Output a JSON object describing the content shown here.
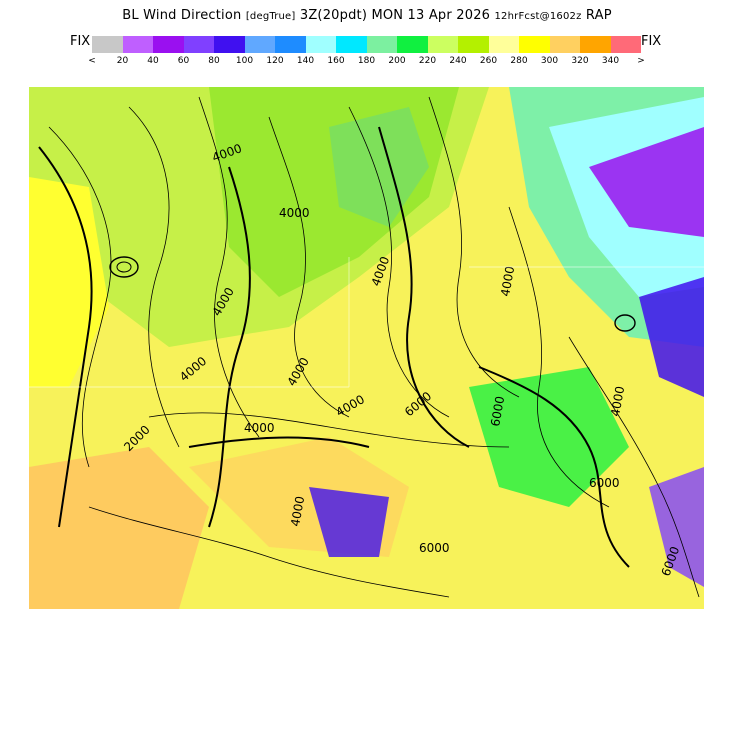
{
  "header": {
    "variable": "BL Wind Direction",
    "units": "[degTrue]",
    "valid": "3Z(20pdt) MON 13 Apr 2026",
    "forecast": "12hrFcst@1602z",
    "model": "RAP"
  },
  "legend": {
    "left_label": "FIX",
    "right_label": "FIX",
    "colors": [
      "#c8c8c8",
      "#bf5fff",
      "#9a10f0",
      "#8040ff",
      "#4010f0",
      "#60a8ff",
      "#1e8cff",
      "#a0ffff",
      "#00e8ff",
      "#7cf0a0",
      "#10f040",
      "#ccff60",
      "#b4f000",
      "#ffff9a",
      "#ffff00",
      "#ffd060",
      "#ffa500",
      "#ff6a78"
    ],
    "tick_labels": [
      "<",
      "20",
      "40",
      "60",
      "80",
      "100",
      "120",
      "140",
      "160",
      "180",
      "200",
      "220",
      "240",
      "260",
      "280",
      "300",
      "320",
      "340",
      ">"
    ]
  },
  "map": {
    "contour_labels": [
      "4000",
      "4000",
      "4000",
      "4000",
      "4000",
      "4000",
      "2000",
      "4000",
      "4000",
      "4000",
      "6000",
      "6000",
      "6000",
      "4000",
      "4000",
      "6000",
      "6000"
    ]
  }
}
